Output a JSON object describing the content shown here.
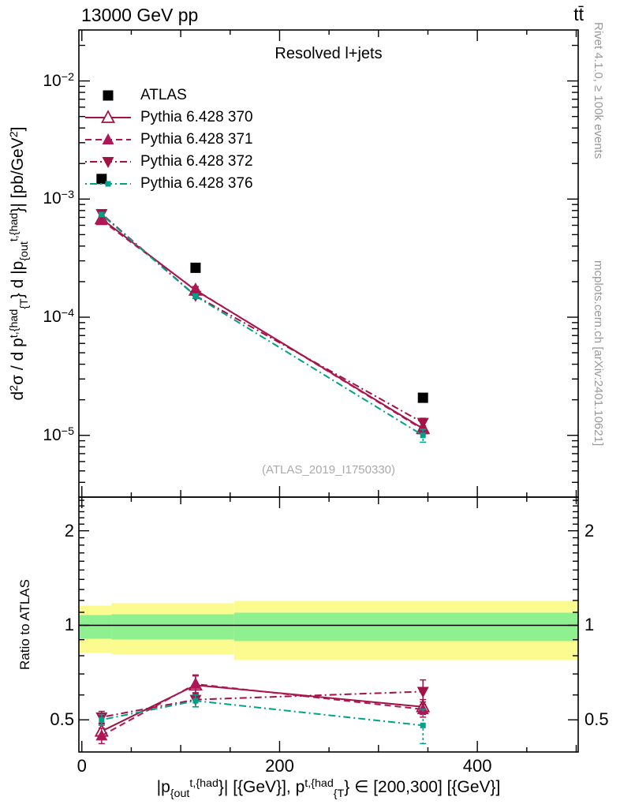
{
  "header": {
    "beam_label": "13000 GeV pp",
    "process_label": "tt̄"
  },
  "side_notes": {
    "right_top": "Rivet 4.1.0, ≥ 100k events",
    "right_bottom": "mcplots.cern.ch [arXiv:2401.10621]"
  },
  "watermark": "(ATLAS_2019_I1750330)",
  "colors": {
    "atlas": "#000000",
    "pythia370": "#9f1440",
    "pythia371": "#b01558",
    "pythia372": "#a31145",
    "pythia376": "#00a189",
    "band_yellow": "#fbfb8f",
    "band_green": "#8ff08f",
    "note_gray": "#999999"
  },
  "chart_data": [
    {
      "type": "line",
      "title": "Resolved l+jets",
      "x": [
        20,
        115,
        345
      ],
      "xlim": [
        -3,
        502
      ],
      "ylog": true,
      "ylim": [
        3e-06,
        0.027
      ],
      "x_ticks": [
        {
          "value": 0,
          "label": "0"
        },
        {
          "value": 200,
          "label": "200"
        },
        {
          "value": 400,
          "label": "400"
        }
      ],
      "x_minor_step": 50,
      "y_ticks": [
        {
          "value": 0.01,
          "base": "10",
          "exp": "−2"
        },
        {
          "value": 0.001,
          "base": "10",
          "exp": "−3"
        },
        {
          "value": 0.0001,
          "base": "10",
          "exp": "−4"
        },
        {
          "value": 1e-05,
          "base": "10",
          "exp": "−5"
        }
      ],
      "xlabel_rich": [
        {
          "t": "|p"
        },
        {
          "sub": "{out"
        },
        {
          "sup": "t,{had"
        },
        {
          "t": "}| [{GeV}], p"
        },
        {
          "sup": "t,{had"
        },
        {
          "sub": "{T"
        },
        {
          "t": "} ∈ [200,300] [{GeV}]"
        }
      ],
      "ylabel_rich": [
        {
          "t": "d"
        },
        {
          "sup": "2"
        },
        {
          "t": "σ / d p"
        },
        {
          "sup": "t,{had"
        },
        {
          "sub": "{T"
        },
        {
          "t": "} d |p"
        },
        {
          "sub": "{out"
        },
        {
          "sup": "t,{had"
        },
        {
          "t": "}| [pb/GeV"
        },
        {
          "sup": "2"
        },
        {
          "t": "]"
        }
      ],
      "series": [
        {
          "name": "ATLAS",
          "marker": "square",
          "color": "#000000",
          "line": "none",
          "values": [
            0.00148,
            0.000262,
            2.08e-05
          ]
        },
        {
          "name": "Pythia 6.428 370",
          "marker": "triangle-open",
          "color": "#9f1440",
          "line": "solid",
          "values": [
            0.00068,
            0.000169,
            1.14e-05
          ]
        },
        {
          "name": "Pythia 6.428 371",
          "marker": "triangle-up",
          "color": "#b01558",
          "line": "dashed",
          "values": [
            0.00066,
            0.00017,
            1.12e-05
          ]
        },
        {
          "name": "Pythia 6.428 372",
          "marker": "triangle-down",
          "color": "#a31145",
          "line": "dashdot",
          "values": [
            0.00075,
            0.000152,
            1.28e-05
          ]
        },
        {
          "name": "Pythia 6.428 376",
          "marker": "square-small",
          "color": "#00a189",
          "line": "dashdot",
          "values": [
            0.00074,
            0.000151,
            1e-05
          ]
        }
      ]
    },
    {
      "type": "line",
      "ylabel": "Ratio to ATLAS",
      "x": [
        20,
        115,
        345
      ],
      "ylog": true,
      "ylim": [
        0.395,
        2.56
      ],
      "y_ticks": [
        {
          "value": 2,
          "label": "2"
        },
        {
          "value": 1,
          "label": "1"
        },
        {
          "value": 0.5,
          "label": "0.5"
        }
      ],
      "reference_line": 1,
      "bands": {
        "yellow_color": "#fbfb8f",
        "green_color": "#8ff08f",
        "segments": [
          {
            "x": [
              -3,
              30
            ],
            "yellow": [
              0.817,
              1.156
            ],
            "green": [
              0.906,
              1.078
            ]
          },
          {
            "x": [
              30,
              154
            ],
            "yellow": [
              0.807,
              1.176
            ],
            "green": [
              0.901,
              1.084
            ]
          },
          {
            "x": [
              154,
              502
            ],
            "yellow": [
              0.775,
              1.196
            ],
            "green": [
              0.891,
              1.097
            ]
          }
        ]
      },
      "series": [
        {
          "name": "Pythia 6.428 370",
          "marker": "triangle-open",
          "color": "#9f1440",
          "line": "solid",
          "values": [
            0.46,
            0.645,
            0.55
          ],
          "errors": [
            0.025,
            0.045,
            0.03
          ]
        },
        {
          "name": "Pythia 6.428 371",
          "marker": "triangle-up",
          "color": "#b01558",
          "line": "dashed",
          "values": [
            0.445,
            0.65,
            0.54
          ],
          "errors": [
            0.025,
            0.045,
            0.03
          ]
        },
        {
          "name": "Pythia 6.428 372",
          "marker": "triangle-down",
          "color": "#a31145",
          "line": "dashdot",
          "values": [
            0.51,
            0.58,
            0.615
          ],
          "errors": [
            0.022,
            0.03,
            0.055
          ]
        },
        {
          "name": "Pythia 6.428 376",
          "marker": "square-small",
          "color": "#00a189",
          "line": "dashdot",
          "values": [
            0.5,
            0.575,
            0.48
          ],
          "errors": [
            0.02,
            0.025,
            0.06
          ],
          "error_style": "dashed"
        }
      ]
    }
  ],
  "legend": {
    "items": [
      {
        "label": "ATLAS",
        "series": 0
      },
      {
        "label": "Pythia 6.428 370",
        "series": 1
      },
      {
        "label": "Pythia 6.428 371",
        "series": 2
      },
      {
        "label": "Pythia 6.428 372",
        "series": 3
      },
      {
        "label": "Pythia 6.428 376",
        "series": 4
      }
    ]
  }
}
